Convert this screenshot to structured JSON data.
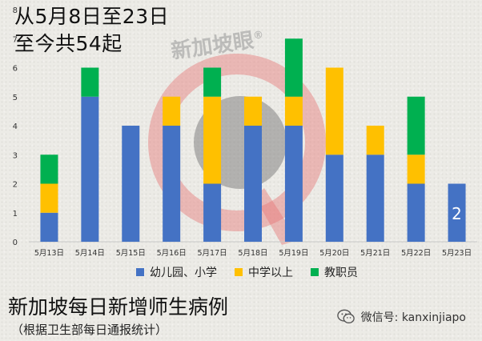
{
  "header": {
    "title_line1": "从5月8日至23日",
    "title_line2": "至今共54起"
  },
  "watermark": {
    "text": "新加坡眼",
    "mark": "®"
  },
  "chart_data": {
    "type": "bar",
    "stacked": true,
    "categories": [
      "5月13日",
      "5月14日",
      "5月15日",
      "5月16日",
      "5月17日",
      "5月18日",
      "5月19日",
      "5月20日",
      "5月21日",
      "5月22日",
      "5月23日"
    ],
    "series": [
      {
        "name": "幼儿园、小学",
        "color": "#4472c4",
        "values": [
          1,
          5,
          4,
          4,
          2,
          4,
          4,
          3,
          3,
          2,
          2
        ]
      },
      {
        "name": "中学以上",
        "color": "#ffc000",
        "values": [
          1,
          0,
          0,
          1,
          3,
          1,
          1,
          3,
          1,
          1,
          0
        ]
      },
      {
        "name": "教职员",
        "color": "#00b050",
        "values": [
          1,
          1,
          0,
          0,
          1,
          0,
          2,
          0,
          0,
          2,
          0
        ]
      }
    ],
    "ylim": [
      0,
      8
    ],
    "yticks": [
      "0",
      "1",
      "2",
      "3",
      "4",
      "5",
      "6",
      "7",
      "8"
    ],
    "annotation": {
      "category": "5月23日",
      "text": "2"
    },
    "grid": false,
    "legend_position": "bottom"
  },
  "footer": {
    "title": "新加坡每日新增师生病例",
    "subtitle": "（根据卫生部每日通报统计）"
  },
  "wechat": {
    "label": "微信号: kanxinjiapo"
  }
}
